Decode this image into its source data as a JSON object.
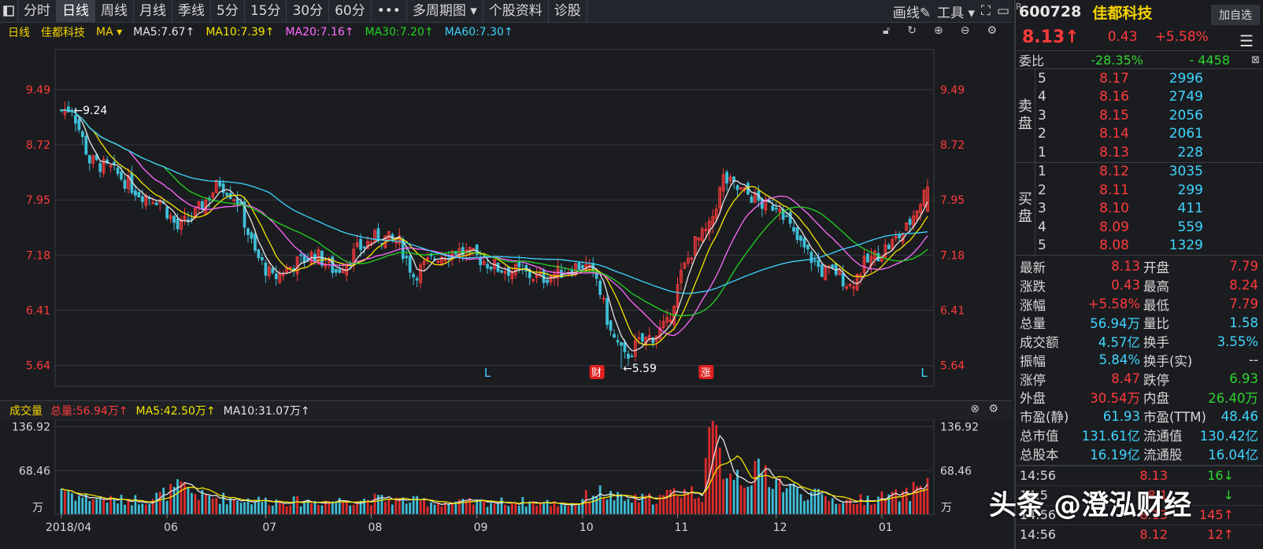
{
  "toolbar": {
    "tabs": [
      "分时",
      "日线",
      "周线",
      "月线",
      "季线",
      "5分",
      "15分",
      "30分",
      "60分",
      "•••",
      "多周期图 ▾",
      "个股资料",
      "诊股"
    ],
    "active_index": 1,
    "draw_label": "画线",
    "tools_label": "工具 ▾"
  },
  "ma_bar": {
    "period": "日线",
    "name": "佳都科技",
    "indicator": "MA ▾",
    "items": [
      {
        "label": "MA5:7.67↑",
        "color": "#e6e6e6"
      },
      {
        "label": "MA10:7.39↑",
        "color": "#f5e400"
      },
      {
        "label": "MA20:7.16↑",
        "color": "#ff6cff"
      },
      {
        "label": "MA30:7.20↑",
        "color": "#22d422"
      },
      {
        "label": "MA60:7.30↑",
        "color": "#3fd5ff"
      }
    ]
  },
  "volume_bar": {
    "title": "成交量",
    "total": "总量:56.94万↑",
    "ma5": "MA5:42.50万↑",
    "ma10": "MA10:31.07万↑"
  },
  "chart_data": {
    "type": "candlestick",
    "price_ticks": [
      "9.49",
      "8.72",
      "7.95",
      "7.18",
      "6.41",
      "5.64"
    ],
    "price_tick_values": [
      9.49,
      8.72,
      7.95,
      7.18,
      6.41,
      5.64
    ],
    "ylim": [
      5.35,
      10.05
    ],
    "volume_ticks": [
      "136.92",
      "68.46",
      "万"
    ],
    "volume_tick_values": [
      136.92,
      68.46
    ],
    "volume_ylim": [
      0,
      140
    ],
    "x_labels": [
      "2018/04",
      "06",
      "07",
      "08",
      "09",
      "10",
      "11",
      "12",
      "01"
    ],
    "x_label_index": [
      0,
      30,
      58,
      88,
      118,
      148,
      175,
      203,
      233
    ],
    "n_days": 247,
    "annotations": [
      {
        "text": "←9.24",
        "index": 3
      },
      {
        "text": "←5.59",
        "index": 159
      }
    ],
    "markers": [
      {
        "text": "L",
        "index": 121,
        "style": "plain"
      },
      {
        "text": "财",
        "index": 152,
        "style": "badge"
      },
      {
        "text": "涨",
        "index": 183,
        "style": "badge"
      },
      {
        "text": "L",
        "index": 245,
        "style": "plain"
      }
    ],
    "price_anchors": [
      [
        0,
        9.2
      ],
      [
        3,
        9.24
      ],
      [
        8,
        8.5
      ],
      [
        15,
        8.35
      ],
      [
        22,
        8.05
      ],
      [
        28,
        7.95
      ],
      [
        33,
        7.55
      ],
      [
        38,
        7.75
      ],
      [
        45,
        8.2
      ],
      [
        50,
        7.95
      ],
      [
        55,
        7.2
      ],
      [
        60,
        6.85
      ],
      [
        66,
        7.05
      ],
      [
        72,
        7.2
      ],
      [
        78,
        6.95
      ],
      [
        84,
        7.25
      ],
      [
        90,
        7.45
      ],
      [
        96,
        7.35
      ],
      [
        100,
        6.9
      ],
      [
        106,
        7.15
      ],
      [
        112,
        7.25
      ],
      [
        118,
        7.15
      ],
      [
        124,
        7.0
      ],
      [
        130,
        6.95
      ],
      [
        136,
        6.85
      ],
      [
        142,
        6.95
      ],
      [
        148,
        7.05
      ],
      [
        152,
        6.85
      ],
      [
        156,
        6.1
      ],
      [
        160,
        5.75
      ],
      [
        164,
        5.95
      ],
      [
        168,
        6.05
      ],
      [
        172,
        6.2
      ],
      [
        176,
        6.9
      ],
      [
        180,
        7.35
      ],
      [
        184,
        7.55
      ],
      [
        188,
        8.25
      ],
      [
        192,
        8.1
      ],
      [
        196,
        8.0
      ],
      [
        200,
        7.85
      ],
      [
        204,
        7.9
      ],
      [
        208,
        7.45
      ],
      [
        212,
        7.2
      ],
      [
        216,
        6.95
      ],
      [
        220,
        6.95
      ],
      [
        224,
        6.75
      ],
      [
        228,
        7.05
      ],
      [
        232,
        7.2
      ],
      [
        236,
        7.35
      ],
      [
        240,
        7.55
      ],
      [
        246,
        8.13
      ]
    ],
    "volume_anchors": [
      [
        0,
        42
      ],
      [
        5,
        28
      ],
      [
        15,
        22
      ],
      [
        25,
        24
      ],
      [
        34,
        42
      ],
      [
        40,
        28
      ],
      [
        55,
        22
      ],
      [
        70,
        20
      ],
      [
        90,
        24
      ],
      [
        110,
        18
      ],
      [
        130,
        20
      ],
      [
        145,
        16
      ],
      [
        152,
        36
      ],
      [
        160,
        22
      ],
      [
        170,
        26
      ],
      [
        176,
        38
      ],
      [
        182,
        32
      ],
      [
        184,
        136
      ],
      [
        188,
        78
      ],
      [
        194,
        58
      ],
      [
        200,
        66
      ],
      [
        206,
        42
      ],
      [
        214,
        30
      ],
      [
        222,
        20
      ],
      [
        232,
        26
      ],
      [
        240,
        30
      ],
      [
        246,
        57
      ]
    ],
    "ma_colors": {
      "ma5": "#e6e6e6",
      "ma10": "#f5e400",
      "ma20": "#ff6cff",
      "ma30": "#22d422",
      "ma60": "#3fd5ff"
    },
    "up_color": "#ff3b3b",
    "down_color": "#3fbfd8"
  },
  "quote": {
    "flag": "R",
    "code": "600728",
    "name": "佳都科技",
    "add_button": "加自选",
    "price": "8.13↑",
    "change": "0.43",
    "change_pct": "+5.58%",
    "committee_label": "委比",
    "committee_ratio": "-28.35%",
    "committee_diff": "- 4458",
    "sell_label": "卖盘",
    "buy_label": "买盘",
    "sell": [
      {
        "lv": "5",
        "price": "8.17",
        "vol": "2996"
      },
      {
        "lv": "4",
        "price": "8.16",
        "vol": "2749"
      },
      {
        "lv": "3",
        "price": "8.15",
        "vol": "2056"
      },
      {
        "lv": "2",
        "price": "8.14",
        "vol": "2061"
      },
      {
        "lv": "1",
        "price": "8.13",
        "vol": "228"
      }
    ],
    "buy": [
      {
        "lv": "1",
        "price": "8.12",
        "vol": "3035"
      },
      {
        "lv": "2",
        "price": "8.11",
        "vol": "299"
      },
      {
        "lv": "3",
        "price": "8.10",
        "vol": "411"
      },
      {
        "lv": "4",
        "price": "8.09",
        "vol": "559"
      },
      {
        "lv": "5",
        "price": "8.08",
        "vol": "1329"
      }
    ],
    "stats": [
      {
        "k1": "最新",
        "v1": "8.13",
        "c1": "red",
        "k2": "开盘",
        "v2": "7.79",
        "c2": "red"
      },
      {
        "k1": "涨跌",
        "v1": "0.43",
        "c1": "red",
        "k2": "最高",
        "v2": "8.24",
        "c2": "red"
      },
      {
        "k1": "涨幅",
        "v1": "+5.58%",
        "c1": "red",
        "k2": "最低",
        "v2": "7.79",
        "c2": "red"
      },
      {
        "k1": "总量",
        "v1": "56.94万",
        "c1": "cy",
        "k2": "量比",
        "v2": "1.58",
        "c2": "cy"
      },
      {
        "k1": "成交额",
        "v1": "4.57亿",
        "c1": "cy",
        "k2": "换手",
        "v2": "3.55%",
        "c2": "cy"
      },
      {
        "k1": "振幅",
        "v1": "5.84%",
        "c1": "cy",
        "k2": "换手(实)",
        "v2": "--",
        "c2": "wh"
      },
      {
        "k1": "涨停",
        "v1": "8.47",
        "c1": "red",
        "k2": "跌停",
        "v2": "6.93",
        "c2": "gr"
      },
      {
        "k1": "外盘",
        "v1": "30.54万",
        "c1": "red",
        "k2": "内盘",
        "v2": "26.40万",
        "c2": "gr"
      },
      {
        "k1": "市盈(静)",
        "v1": "61.93",
        "c1": "cy",
        "k2": "市盈(TTM)",
        "v2": "48.46",
        "c2": "cy"
      },
      {
        "k1": "总市值",
        "v1": "131.61亿",
        "c1": "cy",
        "k2": "流通值",
        "v2": "130.42亿",
        "c2": "cy"
      },
      {
        "k1": "总股本",
        "v1": "16.19亿",
        "c1": "cy",
        "k2": "流通股",
        "v2": "16.04亿",
        "c2": "cy"
      }
    ],
    "ticks": [
      {
        "t": "14:56",
        "p": "8.13",
        "v": "16↓"
      },
      {
        "t": "14:5",
        "p": "8.1",
        "v": "↓"
      },
      {
        "t": "14:56",
        "p": "8.13",
        "v": "145↑"
      },
      {
        "t": "14:56",
        "p": "8.12",
        "v": "12↑"
      }
    ]
  },
  "watermark": "头条 @澄泓财经"
}
